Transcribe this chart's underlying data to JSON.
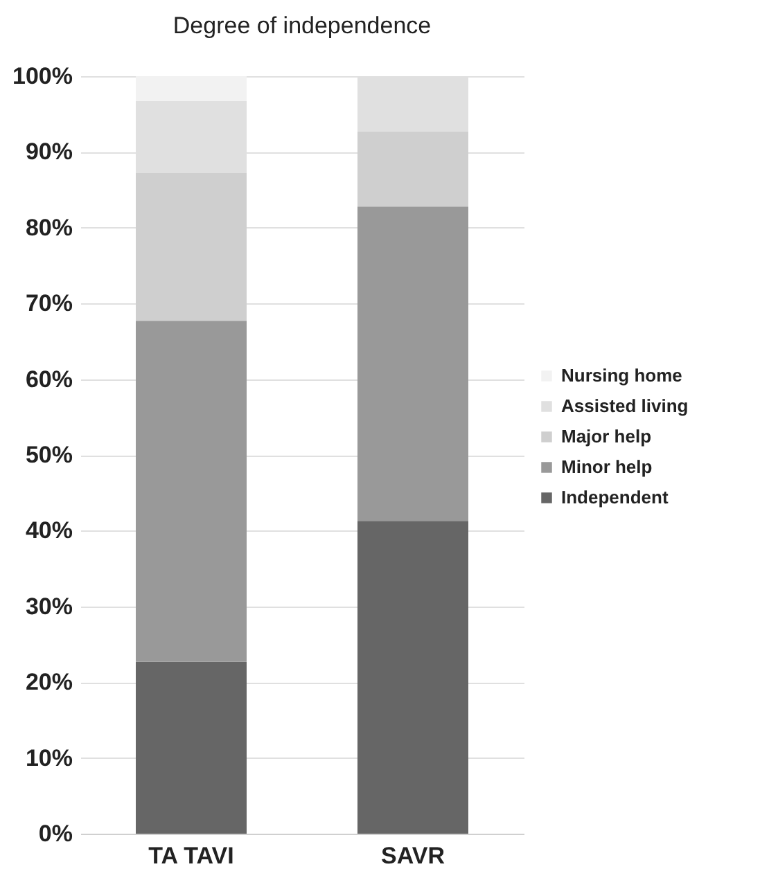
{
  "chart_data": {
    "type": "bar",
    "title": "Degree of independence",
    "stacked": true,
    "categories": [
      "TA  TAVI",
      "SAVR"
    ],
    "series": [
      {
        "name": "Independent",
        "color": "#666666",
        "values": [
          22.7,
          41.3
        ]
      },
      {
        "name": "Minor help",
        "color": "#999999",
        "values": [
          45,
          41.5
        ]
      },
      {
        "name": "Major help",
        "color": "#cfcfcf",
        "values": [
          19.5,
          9.9
        ]
      },
      {
        "name": "Assisted living",
        "color": "#e0e0e0",
        "values": [
          9.5,
          7.3
        ]
      },
      {
        "name": "Nursing home",
        "color": "#f2f2f2",
        "values": [
          3.3,
          0
        ]
      }
    ],
    "ylim": [
      0,
      100
    ],
    "yticks": [
      {
        "value": 0,
        "label": "0%"
      },
      {
        "value": 10,
        "label": "10%"
      },
      {
        "value": 20,
        "label": "20%"
      },
      {
        "value": 30,
        "label": "30%"
      },
      {
        "value": 40,
        "label": "40%"
      },
      {
        "value": 50,
        "label": "50%"
      },
      {
        "value": 60,
        "label": "60%"
      },
      {
        "value": 70,
        "label": "70%"
      },
      {
        "value": 80,
        "label": "80%"
      },
      {
        "value": 90,
        "label": "90%"
      },
      {
        "value": 100,
        "label": "100%"
      }
    ],
    "grid": "y",
    "legend": "right"
  }
}
